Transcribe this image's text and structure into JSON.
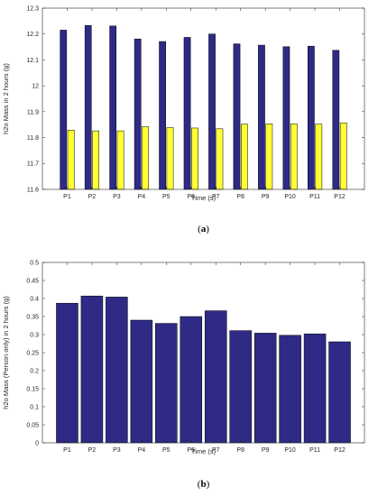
{
  "chart_data": [
    {
      "type": "bar",
      "panel_label": "a",
      "categories": [
        "P1",
        "P2",
        "P3",
        "P4",
        "P5",
        "P6",
        "P7",
        "P8",
        "P9",
        "P10",
        "P11",
        "P12"
      ],
      "series": [
        {
          "color": "#2e2a86",
          "values": [
            12.215,
            12.233,
            12.231,
            12.181,
            12.171,
            12.187,
            12.2,
            12.162,
            12.157,
            12.151,
            12.153,
            12.137
          ]
        },
        {
          "color": "#ffff33",
          "values": [
            11.829,
            11.826,
            11.826,
            11.842,
            11.839,
            11.837,
            11.834,
            11.852,
            11.853,
            11.853,
            11.852,
            11.857
          ]
        }
      ],
      "xlabel": "Time (s)",
      "ylabel": "h2o Mass in 2 hours (g)",
      "ylim": [
        11.6,
        12.3
      ],
      "yticks": [
        "11.6",
        "11.7",
        "11.8",
        "11.9",
        "12",
        "12.1",
        "12.2",
        "12.3"
      ],
      "grid": false
    },
    {
      "type": "bar",
      "panel_label": "b",
      "categories": [
        "P1",
        "P2",
        "P3",
        "P4",
        "P5",
        "P6",
        "P7",
        "P8",
        "P9",
        "P10",
        "P11",
        "P12"
      ],
      "series": [
        {
          "color": "#2e2a86",
          "values": [
            0.387,
            0.407,
            0.404,
            0.34,
            0.331,
            0.35,
            0.366,
            0.311,
            0.304,
            0.298,
            0.302,
            0.28
          ]
        }
      ],
      "xlabel": "Time (s)",
      "ylabel": "h2o Mass (Person only) in 2 hours (g)",
      "ylim": [
        0,
        0.5
      ],
      "yticks": [
        "0",
        "0.05",
        "0.1",
        "0.15",
        "0.2",
        "0.25",
        "0.3",
        "0.35",
        "0.4",
        "0.45",
        "0.5"
      ],
      "grid": false
    }
  ]
}
